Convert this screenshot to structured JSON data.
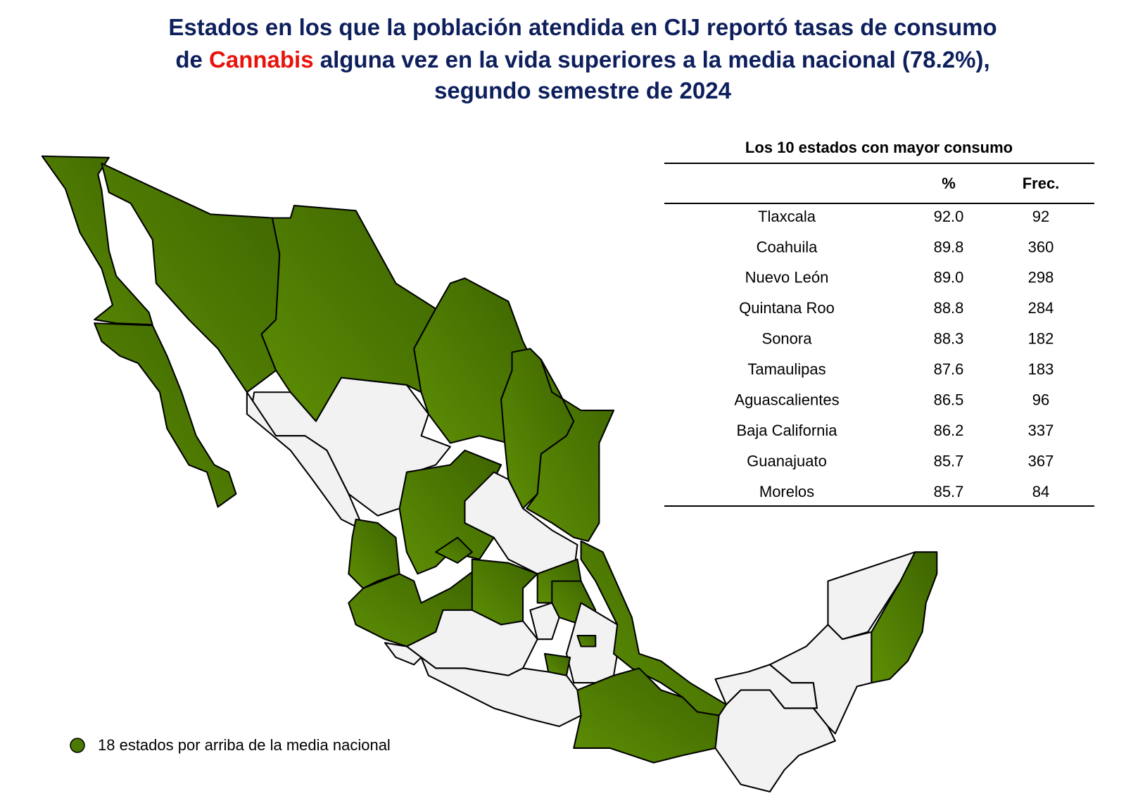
{
  "title": {
    "line1": "Estados en los que la población atendida en CIJ reportó tasas de consumo",
    "line2_start": "de",
    "highlight": "Cannabis",
    "line2_end": "alguna vez en la vida superiores a la media nacional (78.2%),",
    "line3": "segundo semestre de 2024"
  },
  "table": {
    "title": "Los 10 estados con mayor consumo",
    "headers": [
      "%",
      "Frec."
    ],
    "rows": [
      {
        "state": "Tlaxcala",
        "pct": "92.0",
        "freq": "92"
      },
      {
        "state": "Coahuila",
        "pct": "89.8",
        "freq": "360"
      },
      {
        "state": "Nuevo León",
        "pct": "89.0",
        "freq": "298"
      },
      {
        "state": "Quintana Roo",
        "pct": "88.8",
        "freq": "284"
      },
      {
        "state": "Sonora",
        "pct": "88.3",
        "freq": "182"
      },
      {
        "state": "Tamaulipas",
        "pct": "87.6",
        "freq": "183"
      },
      {
        "state": "Aguascalientes",
        "pct": "86.5",
        "freq": "96"
      },
      {
        "state": "Baja California",
        "pct": "86.2",
        "freq": "337"
      },
      {
        "state": "Guanajuato",
        "pct": "85.7",
        "freq": "367"
      },
      {
        "state": "Morelos",
        "pct": "85.7",
        "freq": "84"
      }
    ]
  },
  "legend": {
    "label": "18 estados por arriba de la media nacional"
  }
}
